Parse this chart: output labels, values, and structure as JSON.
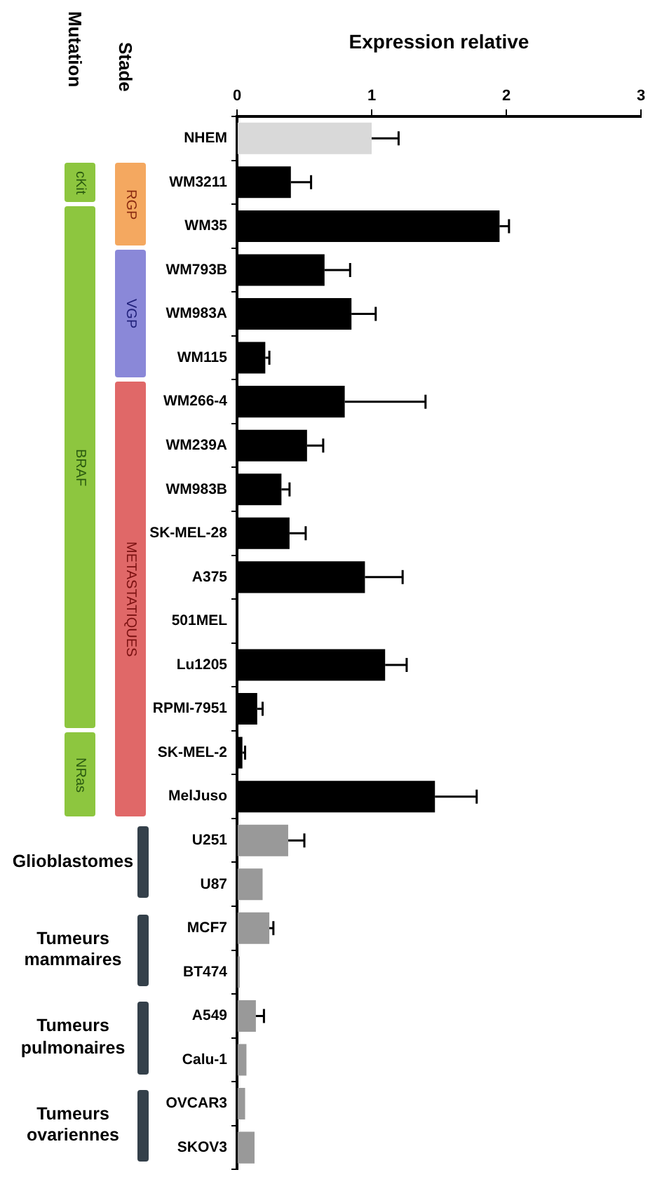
{
  "chart_data": {
    "type": "bar",
    "orientation": "horizontal",
    "xlabel": "Expression relative",
    "categories": [
      "NHEM",
      "WM3211",
      "WM35",
      "WM793B",
      "WM983A",
      "WM115",
      "WM266-4",
      "WM239A",
      "WM983B",
      "SK-MEL-28",
      "A375",
      "501MEL",
      "Lu1205",
      "RPMI-7951",
      "SK-MEL-2",
      "MelJuso",
      "U251",
      "U87",
      "MCF7",
      "BT474",
      "A549",
      "Calu-1",
      "OVCAR3",
      "SKOV3"
    ],
    "values": [
      1.0,
      0.4,
      1.95,
      0.65,
      0.85,
      0.21,
      0.8,
      0.52,
      0.33,
      0.39,
      0.95,
      0.01,
      1.1,
      0.15,
      0.04,
      1.47,
      0.38,
      0.19,
      0.24,
      0.02,
      0.14,
      0.07,
      0.06,
      0.13
    ],
    "errors": [
      0.2,
      0.15,
      0.07,
      0.19,
      0.18,
      0.03,
      0.6,
      0.12,
      0.06,
      0.12,
      0.28,
      null,
      0.16,
      0.04,
      0.02,
      0.31,
      0.12,
      null,
      0.03,
      null,
      0.06,
      null,
      null,
      null
    ],
    "colors": [
      "#d9d9d9",
      "#000000",
      "#000000",
      "#000000",
      "#000000",
      "#000000",
      "#000000",
      "#000000",
      "#000000",
      "#000000",
      "#000000",
      "#000000",
      "#000000",
      "#000000",
      "#000000",
      "#000000",
      "#999999",
      "#999999",
      "#999999",
      "#999999",
      "#999999",
      "#999999",
      "#999999",
      "#999999"
    ],
    "xlim": [
      0,
      3
    ],
    "xticks": [
      0,
      1,
      2,
      3
    ],
    "annotations": [
      "Mutation",
      "Stade",
      "cKit",
      "BRAF",
      "NRas",
      "RGP",
      "VGP",
      "METASTATIQUES",
      "Glioblastomes",
      "Tumeurs mammaires",
      "Tumeurs pulmonaires",
      "Tumeurs ovariennes"
    ]
  }
}
